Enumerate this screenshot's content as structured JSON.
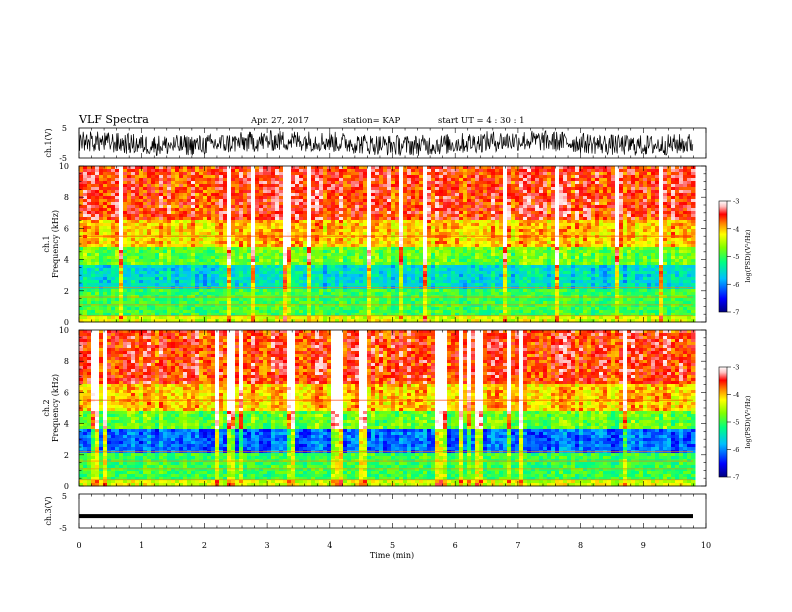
{
  "header": {
    "title": "VLF Spectra",
    "date": "Apr. 27, 2017",
    "station": "station= KAP",
    "start": "start  UT =   4 : 30 : 1"
  },
  "chart_data": [
    {
      "type": "line",
      "panel": "ch1-waveform",
      "ylabel": "ch.1(V)",
      "ylim": [
        -5,
        5
      ],
      "yticks": [
        "5",
        "-5"
      ],
      "xlim": [
        0,
        10
      ],
      "color": "#000000"
    },
    {
      "type": "heatmap",
      "panel": "ch1-spectrogram",
      "ylabel_top": "ch.1",
      "ylabel": "Frequency (kHz)",
      "ylim": [
        0,
        10
      ],
      "yticks": [
        "0",
        "2",
        "4",
        "6",
        "8",
        "10"
      ],
      "xlim": [
        0,
        10
      ],
      "colorbar": {
        "label": "log(PSD)(V²/Hz)",
        "range": [
          -7,
          -3
        ],
        "ticks": [
          "-3",
          "-4",
          "-5",
          "-6",
          "-7"
        ]
      }
    },
    {
      "type": "heatmap",
      "panel": "ch2-spectrogram",
      "ylabel_top": "ch.2",
      "ylabel": "Frequency (kHz)",
      "ylim": [
        0,
        10
      ],
      "yticks": [
        "0",
        "2",
        "4",
        "6",
        "8",
        "10"
      ],
      "xlim": [
        0,
        10
      ],
      "colorbar": {
        "label": "log(PSD)(V²/Hz)",
        "range": [
          -7,
          -3
        ],
        "ticks": [
          "-3",
          "-4",
          "-5",
          "-6",
          "-7"
        ]
      }
    },
    {
      "type": "line",
      "panel": "ch3-waveform",
      "ylabel": "ch.3(V)",
      "ylim": [
        -5,
        5
      ],
      "yticks": [
        "5",
        "-5"
      ],
      "xlim": [
        0,
        10
      ],
      "xticks": [
        "0",
        "1",
        "2",
        "3",
        "4",
        "5",
        "6",
        "7",
        "8",
        "9",
        "10"
      ],
      "xlabel": "Time (min)",
      "approx_value": -1.5,
      "color": "#000000"
    }
  ],
  "colors": {
    "colormap": [
      "#000080",
      "#0000ff",
      "#00bfff",
      "#00ff80",
      "#80ff00",
      "#ffff00",
      "#ff8000",
      "#ff0000",
      "#ffc0c0",
      "#ffffff"
    ]
  }
}
